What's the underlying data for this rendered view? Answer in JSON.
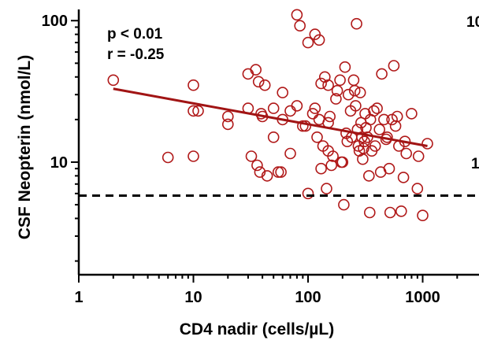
{
  "chart_data": {
    "type": "scatter",
    "xlabel": "CD4 nadir (cells/µL)",
    "ylabel": "CSF Neopterin (nmol/L)",
    "xscale": "log",
    "yscale": "log",
    "xlim": [
      1,
      3000
    ],
    "ylim": [
      1.6,
      120
    ],
    "x_ticks": [
      1,
      10,
      100,
      1000
    ],
    "x_tick_labels": [
      "1",
      "10",
      "100",
      "1000"
    ],
    "y_ticks": [
      10,
      100
    ],
    "y_tick_labels": [
      "10",
      "100"
    ],
    "annotations": [
      "p < 0.01",
      "r = -0.25"
    ],
    "clipped_labels": [
      "10",
      "1"
    ],
    "colors": {
      "points": "#b01818",
      "fit_line": "#a11414",
      "reference_line": "#000000",
      "axes": "#000000"
    },
    "regression": {
      "x": [
        2,
        1100
      ],
      "y": [
        33,
        13
      ]
    },
    "reference_line": {
      "y": 5.8,
      "style": "dashed"
    },
    "points": [
      [
        2,
        38
      ],
      [
        6,
        10.8
      ],
      [
        10,
        11
      ],
      [
        10,
        23
      ],
      [
        10,
        35
      ],
      [
        11,
        23
      ],
      [
        20,
        18.5
      ],
      [
        20,
        21
      ],
      [
        30,
        42
      ],
      [
        30,
        24
      ],
      [
        32,
        11
      ],
      [
        35,
        45
      ],
      [
        36,
        9.5
      ],
      [
        37,
        37
      ],
      [
        38,
        8.5
      ],
      [
        39,
        22
      ],
      [
        40,
        21
      ],
      [
        42,
        35
      ],
      [
        44,
        8
      ],
      [
        50,
        24
      ],
      [
        50,
        15
      ],
      [
        55,
        8.5
      ],
      [
        58,
        8.5
      ],
      [
        60,
        31
      ],
      [
        60,
        20
      ],
      [
        70,
        11.5
      ],
      [
        70,
        23
      ],
      [
        80,
        110
      ],
      [
        80,
        25
      ],
      [
        85,
        92
      ],
      [
        90,
        18
      ],
      [
        95,
        18
      ],
      [
        100,
        70
      ],
      [
        100,
        6
      ],
      [
        110,
        22
      ],
      [
        115,
        80
      ],
      [
        115,
        24
      ],
      [
        120,
        15
      ],
      [
        125,
        73
      ],
      [
        125,
        20
      ],
      [
        130,
        36
      ],
      [
        130,
        9
      ],
      [
        135,
        13
      ],
      [
        140,
        40
      ],
      [
        145,
        6.5
      ],
      [
        150,
        19
      ],
      [
        150,
        35
      ],
      [
        150,
        12
      ],
      [
        155,
        21
      ],
      [
        160,
        9.5
      ],
      [
        165,
        11
      ],
      [
        175,
        28
      ],
      [
        180,
        32
      ],
      [
        190,
        38
      ],
      [
        195,
        10
      ],
      [
        200,
        10
      ],
      [
        205,
        5
      ],
      [
        210,
        47
      ],
      [
        215,
        16
      ],
      [
        220,
        14
      ],
      [
        225,
        30
      ],
      [
        235,
        23
      ],
      [
        240,
        15
      ],
      [
        250,
        38
      ],
      [
        255,
        32
      ],
      [
        260,
        25
      ],
      [
        265,
        95
      ],
      [
        270,
        17
      ],
      [
        275,
        13
      ],
      [
        280,
        12
      ],
      [
        285,
        31
      ],
      [
        290,
        19
      ],
      [
        295,
        15
      ],
      [
        300,
        10.5
      ],
      [
        305,
        12.5
      ],
      [
        310,
        14
      ],
      [
        315,
        22
      ],
      [
        320,
        17.5
      ],
      [
        330,
        15
      ],
      [
        340,
        8
      ],
      [
        345,
        4.4
      ],
      [
        350,
        20
      ],
      [
        360,
        12
      ],
      [
        375,
        23
      ],
      [
        385,
        13
      ],
      [
        400,
        24
      ],
      [
        420,
        17
      ],
      [
        430,
        8.5
      ],
      [
        440,
        42
      ],
      [
        460,
        20
      ],
      [
        480,
        14.5
      ],
      [
        490,
        15
      ],
      [
        510,
        9
      ],
      [
        520,
        4.4
      ],
      [
        540,
        20
      ],
      [
        560,
        48
      ],
      [
        580,
        18
      ],
      [
        600,
        21
      ],
      [
        620,
        13
      ],
      [
        650,
        4.5
      ],
      [
        680,
        7.8
      ],
      [
        700,
        14
      ],
      [
        720,
        11.5
      ],
      [
        800,
        22
      ],
      [
        900,
        6.5
      ],
      [
        920,
        11
      ],
      [
        1000,
        4.2
      ],
      [
        1100,
        13.5
      ]
    ]
  }
}
